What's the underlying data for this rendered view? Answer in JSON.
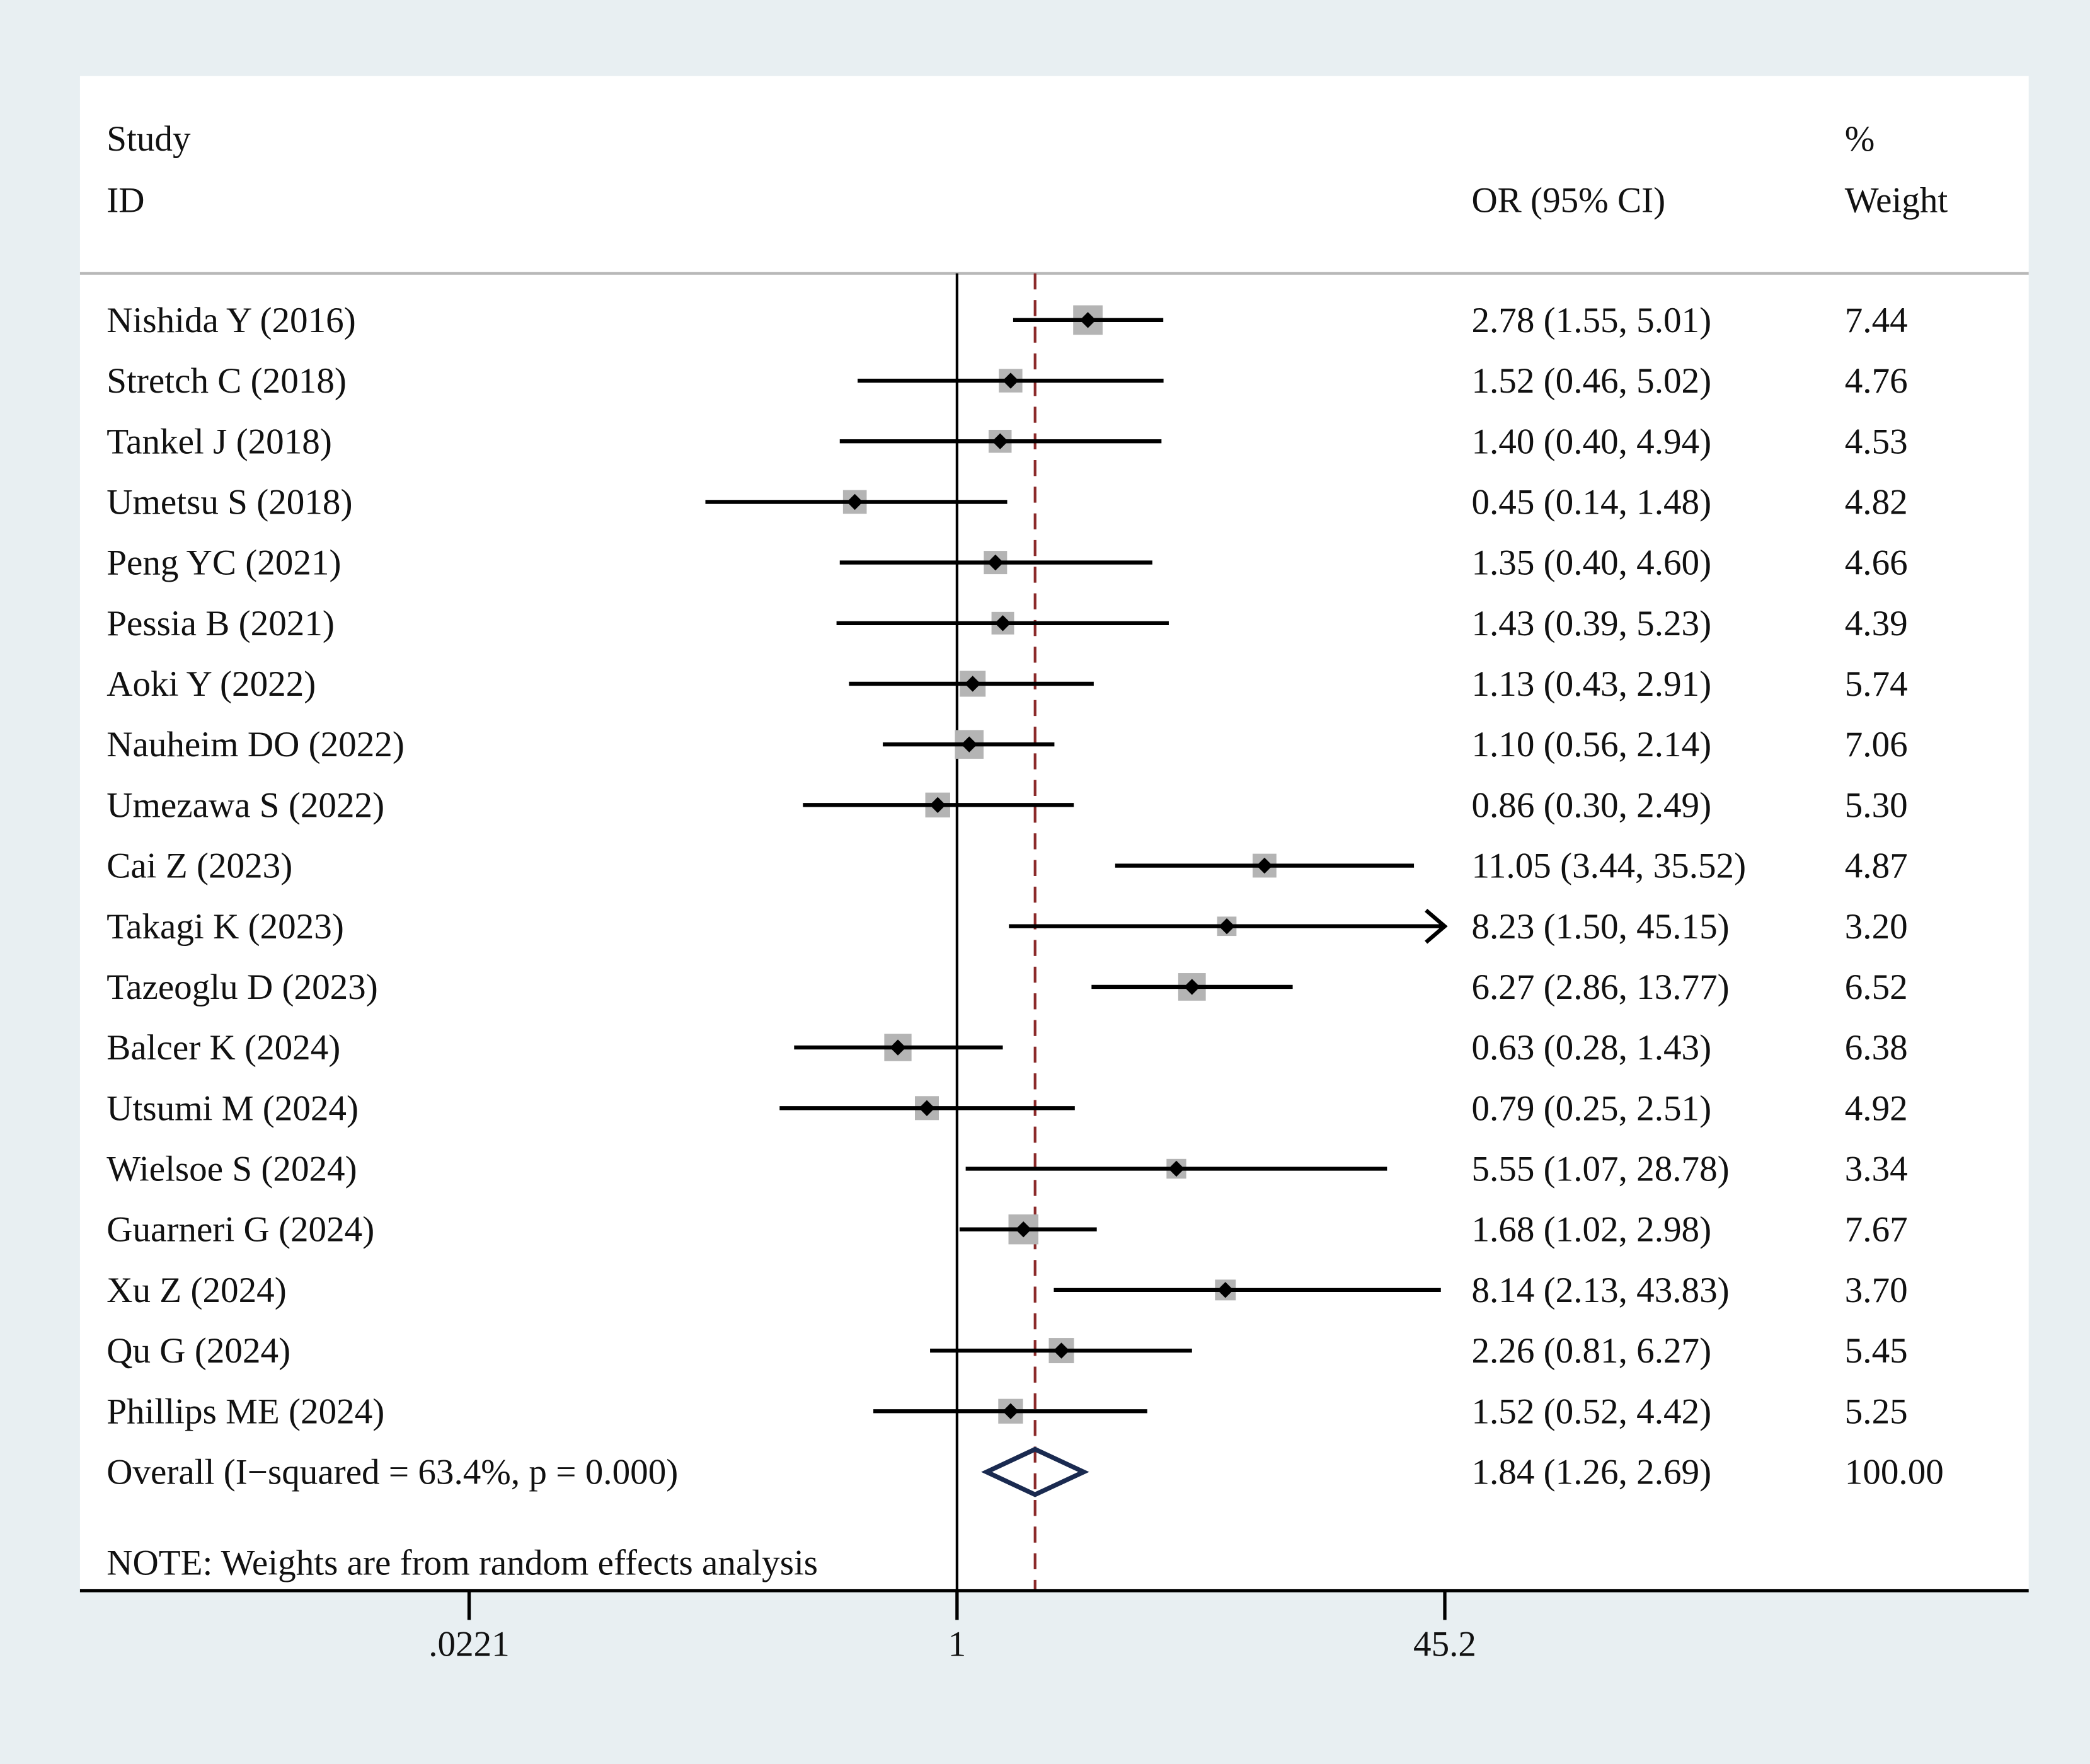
{
  "chart_data": {
    "type": "forest",
    "x_scale": "log",
    "xlim": [
      0.0221,
      45.2
    ],
    "x_ticks": [
      ".0221",
      "1",
      "45.2"
    ],
    "null_value": 1,
    "header": {
      "study": "Study",
      "id": "ID",
      "effect": "OR (95% CI)",
      "pct": "%",
      "weight": "Weight"
    },
    "studies": [
      {
        "label": "Nishida Y (2016)",
        "or": 2.78,
        "lo": 1.55,
        "hi": 5.01,
        "text": "2.78 (1.55, 5.01)",
        "weight": "7.44"
      },
      {
        "label": "Stretch C (2018)",
        "or": 1.52,
        "lo": 0.46,
        "hi": 5.02,
        "text": "1.52 (0.46, 5.02)",
        "weight": "4.76"
      },
      {
        "label": "Tankel J (2018)",
        "or": 1.4,
        "lo": 0.4,
        "hi": 4.94,
        "text": "1.40 (0.40, 4.94)",
        "weight": "4.53"
      },
      {
        "label": "Umetsu S (2018)",
        "or": 0.45,
        "lo": 0.14,
        "hi": 1.48,
        "text": "0.45 (0.14, 1.48)",
        "weight": "4.82"
      },
      {
        "label": "Peng YC (2021)",
        "or": 1.35,
        "lo": 0.4,
        "hi": 4.6,
        "text": "1.35 (0.40, 4.60)",
        "weight": "4.66"
      },
      {
        "label": "Pessia B (2021)",
        "or": 1.43,
        "lo": 0.39,
        "hi": 5.23,
        "text": "1.43 (0.39, 5.23)",
        "weight": "4.39"
      },
      {
        "label": "Aoki Y (2022)",
        "or": 1.13,
        "lo": 0.43,
        "hi": 2.91,
        "text": "1.13 (0.43, 2.91)",
        "weight": "5.74"
      },
      {
        "label": "Nauheim DO (2022)",
        "or": 1.1,
        "lo": 0.56,
        "hi": 2.14,
        "text": "1.10 (0.56, 2.14)",
        "weight": "7.06"
      },
      {
        "label": "Umezawa S (2022)",
        "or": 0.86,
        "lo": 0.3,
        "hi": 2.49,
        "text": "0.86 (0.30, 2.49)",
        "weight": "5.30"
      },
      {
        "label": "Cai Z (2023)",
        "or": 11.05,
        "lo": 3.44,
        "hi": 35.52,
        "text": "11.05 (3.44, 35.52)",
        "weight": "4.87"
      },
      {
        "label": "Takagi K (2023)",
        "or": 8.23,
        "lo": 1.5,
        "hi": 45.15,
        "text": "8.23 (1.50, 45.15)",
        "weight": "3.20"
      },
      {
        "label": "Tazeoglu D (2023)",
        "or": 6.27,
        "lo": 2.86,
        "hi": 13.77,
        "text": "6.27 (2.86, 13.77)",
        "weight": "6.52"
      },
      {
        "label": "Balcer K (2024)",
        "or": 0.63,
        "lo": 0.28,
        "hi": 1.43,
        "text": "0.63 (0.28, 1.43)",
        "weight": "6.38"
      },
      {
        "label": "Utsumi M (2024)",
        "or": 0.79,
        "lo": 0.25,
        "hi": 2.51,
        "text": "0.79 (0.25, 2.51)",
        "weight": "4.92"
      },
      {
        "label": "Wielsoe S (2024)",
        "or": 5.55,
        "lo": 1.07,
        "hi": 28.78,
        "text": "5.55 (1.07, 28.78)",
        "weight": "3.34"
      },
      {
        "label": "Guarneri G (2024)",
        "or": 1.68,
        "lo": 1.02,
        "hi": 2.98,
        "text": "1.68 (1.02, 2.98)",
        "weight": "7.67"
      },
      {
        "label": "Xu Z (2024)",
        "or": 8.14,
        "lo": 2.13,
        "hi": 43.83,
        "text": "8.14 (2.13, 43.83)",
        "weight": "3.70"
      },
      {
        "label": "Qu G (2024)",
        "or": 2.26,
        "lo": 0.81,
        "hi": 6.27,
        "text": "2.26 (0.81, 6.27)",
        "weight": "5.45"
      },
      {
        "label": "Phillips ME (2024)",
        "or": 1.52,
        "lo": 0.52,
        "hi": 4.42,
        "text": "1.52 (0.52, 4.42)",
        "weight": "5.25"
      }
    ],
    "overall": {
      "label": "Overall  (I−squared = 63.4%, p = 0.000)",
      "or": 1.84,
      "lo": 1.26,
      "hi": 2.69,
      "text": "1.84 (1.26, 2.69)",
      "weight": "100.00"
    },
    "note": "NOTE: Weights are from random effects analysis",
    "colors": {
      "background": "#e8eff2",
      "box": "#b4b4b4",
      "diamond": "#1a2a50",
      "overall_line": "#8b2a2a"
    }
  }
}
